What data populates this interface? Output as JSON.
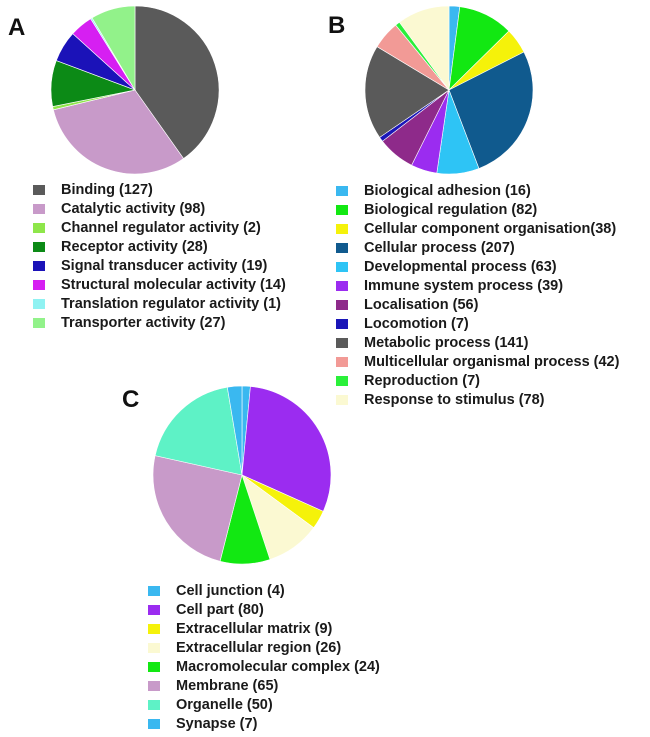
{
  "chart_data": [
    {
      "type": "pie",
      "panel": "A",
      "title": "",
      "series": [
        {
          "label": "Binding (127)",
          "value": 127,
          "color": "#5a5a5a"
        },
        {
          "label": "Catalytic activity (98)",
          "value": 98,
          "color": "#c89ac9"
        },
        {
          "label": "Channel regulator activity (2)",
          "value": 2,
          "color": "#8ee64a"
        },
        {
          "label": "Receptor activity (28)",
          "value": 28,
          "color": "#0c8a16"
        },
        {
          "label": "Signal transducer activity (19)",
          "value": 19,
          "color": "#1b12b8"
        },
        {
          "label": "Structural molecular activity (14)",
          "value": 14,
          "color": "#d61ff2"
        },
        {
          "label": "Translation regulator activity (1)",
          "value": 1,
          "color": "#8ff2f2"
        },
        {
          "label": "Transporter activity (27)",
          "value": 27,
          "color": "#92f28a"
        }
      ]
    },
    {
      "type": "pie",
      "panel": "B",
      "title": "",
      "series": [
        {
          "label": "Biological adhesion (16)",
          "value": 16,
          "color": "#3ab8f0"
        },
        {
          "label": "Biological regulation (82)",
          "value": 82,
          "color": "#12e812"
        },
        {
          "label": "Cellular component organisation(38)",
          "value": 38,
          "color": "#f5f20a"
        },
        {
          "label": "Cellular process (207)",
          "value": 207,
          "color": "#105a8e"
        },
        {
          "label": "Developmental process (63)",
          "value": 63,
          "color": "#2ec4f5"
        },
        {
          "label": "Immune system process (39)",
          "value": 39,
          "color": "#9b2cf0"
        },
        {
          "label": "Localisation (56)",
          "value": 56,
          "color": "#8e2a8a"
        },
        {
          "label": "Locomotion (7)",
          "value": 7,
          "color": "#1a16b8"
        },
        {
          "label": "Metabolic process (141)",
          "value": 141,
          "color": "#5a5a5a"
        },
        {
          "label": "Multicellular organismal process (42)",
          "value": 42,
          "color": "#f29a96"
        },
        {
          "label": "Reproduction (7)",
          "value": 7,
          "color": "#2af03a"
        },
        {
          "label": "Response to stimulus (78)",
          "value": 78,
          "color": "#fbf9d2"
        }
      ]
    },
    {
      "type": "pie",
      "panel": "C",
      "title": "",
      "series": [
        {
          "label": "Cell junction (4)",
          "value": 4,
          "color": "#3ab8f0"
        },
        {
          "label": "Cell part (80)",
          "value": 80,
          "color": "#9b2cf0"
        },
        {
          "label": "Extracellular matrix (9)",
          "value": 9,
          "color": "#f5f20a"
        },
        {
          "label": "Extracellular region (26)",
          "value": 26,
          "color": "#fbf9d2"
        },
        {
          "label": "Macromolecular complex (24)",
          "value": 24,
          "color": "#12e812"
        },
        {
          "label": "Membrane (65)",
          "value": 65,
          "color": "#c89ac9"
        },
        {
          "label": "Organelle (50)",
          "value": 50,
          "color": "#5ef2c6"
        },
        {
          "label": "Synapse (7)",
          "value": 7,
          "color": "#3ab8f0"
        }
      ]
    }
  ]
}
